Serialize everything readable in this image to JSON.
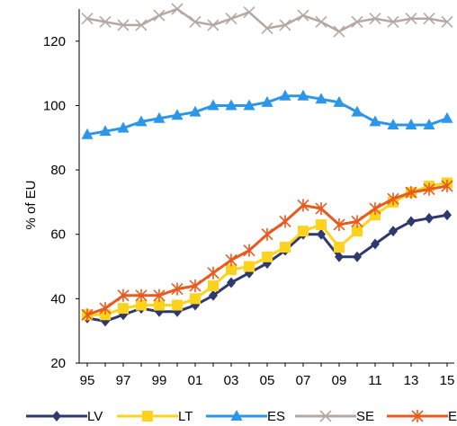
{
  "chart_data": {
    "type": "line",
    "title": "",
    "xlabel": "",
    "ylabel": "% of EU",
    "ylim": [
      20,
      130
    ],
    "yticks": [
      20,
      40,
      60,
      80,
      100,
      120
    ],
    "x": [
      1995,
      1996,
      1997,
      1998,
      1999,
      2000,
      2001,
      2002,
      2003,
      2004,
      2005,
      2006,
      2007,
      2008,
      2009,
      2010,
      2011,
      2012,
      2013,
      2014,
      2015
    ],
    "xtick_labels": [
      "95",
      "97",
      "99",
      "01",
      "03",
      "05",
      "07",
      "09",
      "11",
      "13",
      "15"
    ],
    "grid": false,
    "legend_position": "bottom",
    "series": [
      {
        "name": "LV",
        "color": "#2e3a6e",
        "marker": "diamond",
        "values": [
          34,
          33,
          35,
          37,
          36,
          36,
          38,
          41,
          45,
          48,
          51,
          55,
          60,
          60,
          53,
          53,
          57,
          61,
          64,
          65,
          66
        ]
      },
      {
        "name": "LT",
        "color": "#ffd21e",
        "marker": "square",
        "values": [
          35,
          35,
          37,
          38,
          38,
          38,
          40,
          44,
          49,
          50,
          53,
          56,
          61,
          63,
          56,
          61,
          66,
          70,
          73,
          75,
          76
        ]
      },
      {
        "name": "ES",
        "color": "#2c96e8",
        "marker": "triangle",
        "values": [
          91,
          92,
          93,
          95,
          96,
          97,
          98,
          100,
          100,
          100,
          101,
          103,
          103,
          102,
          101,
          98,
          95,
          94,
          94,
          94,
          96
        ]
      },
      {
        "name": "SE",
        "color": "#b5a8a2",
        "marker": "x",
        "values": [
          127,
          126,
          125,
          125,
          128,
          130,
          126,
          125,
          127,
          129,
          124,
          125,
          128,
          126,
          123,
          126,
          127,
          126,
          127,
          127,
          126
        ]
      },
      {
        "name": "EE",
        "color": "#e85a1e",
        "marker": "star",
        "values": [
          35,
          37,
          41,
          41,
          41,
          43,
          44,
          48,
          52,
          55,
          60,
          64,
          69,
          68,
          63,
          64,
          68,
          71,
          73,
          74,
          75
        ]
      }
    ]
  }
}
